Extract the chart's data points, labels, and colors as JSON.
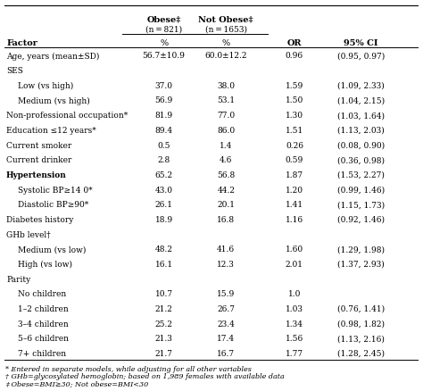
{
  "col_x": {
    "factor": 0.005,
    "obese": 0.385,
    "not_obese": 0.535,
    "or": 0.7,
    "ci": 0.86
  },
  "rows": [
    {
      "factor": "Age, years (mean±SD)",
      "obese": "56.7±10.9",
      "not_obese": "60.0±12.2",
      "or": "0.96",
      "ci": "(0.95, 0.97)",
      "indent": 0,
      "bold": false
    },
    {
      "factor": "SES",
      "obese": "",
      "not_obese": "",
      "or": "",
      "ci": "",
      "indent": 0,
      "bold": false
    },
    {
      "factor": "Low (vs high)",
      "obese": "37.0",
      "not_obese": "38.0",
      "or": "1.59",
      "ci": "(1.09, 2.33)",
      "indent": 1,
      "bold": false
    },
    {
      "factor": "Medium (vs high)",
      "obese": "56.9",
      "not_obese": "53.1",
      "or": "1.50",
      "ci": "(1.04, 2.15)",
      "indent": 1,
      "bold": false
    },
    {
      "factor": "Non-professional occupation*",
      "obese": "81.9",
      "not_obese": "77.0",
      "or": "1.30",
      "ci": "(1.03, 1.64)",
      "indent": 0,
      "bold": false
    },
    {
      "factor": "Education ≤12 years*",
      "obese": "89.4",
      "not_obese": "86.0",
      "or": "1.51",
      "ci": "(1.13, 2.03)",
      "indent": 0,
      "bold": false
    },
    {
      "factor": "Current smoker",
      "obese": "0.5",
      "not_obese": "1.4",
      "or": "0.26",
      "ci": "(0.08, 0.90)",
      "indent": 0,
      "bold": false
    },
    {
      "factor": "Current drinker",
      "obese": "2.8",
      "not_obese": "4.6",
      "or": "0.59",
      "ci": "(0.36, 0.98)",
      "indent": 0,
      "bold": false
    },
    {
      "factor": "Hypertension",
      "obese": "65.2",
      "not_obese": "56.8",
      "or": "1.87",
      "ci": "(1.53, 2.27)",
      "indent": 0,
      "bold": false
    },
    {
      "factor": "Systolic BP≥14 0*",
      "obese": "43.0",
      "not_obese": "44.2",
      "or": "1.20",
      "ci": "(0.99, 1.46)",
      "indent": 1,
      "bold": false
    },
    {
      "factor": "Diastolic BP≥90*",
      "obese": "26.1",
      "not_obese": "20.1",
      "or": "1.41",
      "ci": "(1.15, 1.73)",
      "indent": 1,
      "bold": false
    },
    {
      "factor": "Diabetes history",
      "obese": "18.9",
      "not_obese": "16.8",
      "or": "1.16",
      "ci": "(0.92, 1.46)",
      "indent": 0,
      "bold": false
    },
    {
      "factor": "GHb level†",
      "obese": "",
      "not_obese": "",
      "or": "",
      "ci": "",
      "indent": 0,
      "bold": false
    },
    {
      "factor": "Medium (vs low)",
      "obese": "48.2",
      "not_obese": "41.6",
      "or": "1.60",
      "ci": "(1.29, 1.98)",
      "indent": 1,
      "bold": false
    },
    {
      "factor": "High (vs low)",
      "obese": "16.1",
      "not_obese": "12.3",
      "or": "2.01",
      "ci": "(1.37, 2.93)",
      "indent": 1,
      "bold": false
    },
    {
      "factor": "Parity",
      "obese": "",
      "not_obese": "",
      "or": "",
      "ci": "",
      "indent": 0,
      "bold": false
    },
    {
      "factor": "No children",
      "obese": "10.7",
      "not_obese": "15.9",
      "or": "1.0",
      "ci": "",
      "indent": 1,
      "bold": false
    },
    {
      "factor": "1–2 children",
      "obese": "21.2",
      "not_obese": "26.7",
      "or": "1.03",
      "ci": "(0.76, 1.41)",
      "indent": 1,
      "bold": false
    },
    {
      "factor": "3–4 children",
      "obese": "25.2",
      "not_obese": "23.4",
      "or": "1.34",
      "ci": "(0.98, 1.82)",
      "indent": 1,
      "bold": false
    },
    {
      "factor": "5–6 children",
      "obese": "21.3",
      "not_obese": "17.4",
      "or": "1.56",
      "ci": "(1.13, 2.16)",
      "indent": 1,
      "bold": false
    },
    {
      "factor": "7+ children",
      "obese": "21.7",
      "not_obese": "16.7",
      "or": "1.77",
      "ci": "(1.28, 2.45)",
      "indent": 1,
      "bold": false
    }
  ],
  "section_headers": [
    "SES",
    "Hypertension",
    "GHb level†",
    "Parity"
  ],
  "bold_rows": [
    "Hypertension"
  ],
  "footnotes": [
    "* Entered in separate models, while adjusting for all other variables",
    "† GHb=glycosylated hemoglobin; based on 1,989 females with available data",
    "‡ Obese=BMI≥30; Not obese=BMI<30"
  ],
  "font_size": 6.5,
  "header_font_size": 7.0,
  "footnote_font_size": 5.8
}
